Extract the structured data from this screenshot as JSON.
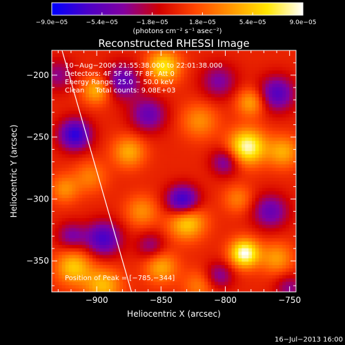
{
  "chart_data": {
    "type": "heatmap",
    "title": "Reconstructed RHESSI Image",
    "xlabel": "Heliocentric X (arcsec)",
    "ylabel": "Heliocentric Y (arcsec)",
    "xlim": [
      -935,
      -745
    ],
    "ylim": [
      -375,
      -180
    ],
    "xticks": [
      -900,
      -850,
      -800,
      -750
    ],
    "yticks": [
      -350,
      -300,
      -250,
      -200
    ],
    "xtick_labels": [
      "−900",
      "−850",
      "−800",
      "−750"
    ],
    "ytick_labels": [
      "−350",
      "−300",
      "−250",
      "−200"
    ],
    "colorbar": {
      "range": [
        -9e-05,
        9e-05
      ],
      "ticks": [
        -9e-05,
        -5.4e-05,
        -1.8e-05,
        1.8e-05,
        5.4e-05,
        9e-05
      ],
      "tick_labels": [
        "−9.0e−05",
        "−5.4e−05",
        "−1.8e−05",
        "1.8e−05",
        "5.4e−05",
        "9.0e−05"
      ],
      "unit_label": "(photons cm⁻² s⁻¹ asec⁻²)",
      "colormap": [
        "#0000ff",
        "#4b00c8",
        "#8200a0",
        "#d20000",
        "#ff4600",
        "#ff9600",
        "#ffe600",
        "#ffffff"
      ]
    },
    "annotations": [
      "10−Aug−2006 21:55:38.000 to 22:01:38.000",
      "Detectors: 4F 5F 6F 7F 8F, Att 0",
      "Energy Range: 25.0 − 50.0 keV",
      "Clean     Total counts: 9.08E+03"
    ],
    "peak_label": "Position of Peak = [−785,−344]",
    "peak": [
      -785,
      -344
    ],
    "limb_line": [
      [
        -927,
        -180
      ],
      [
        -873,
        -375
      ]
    ],
    "sources": [
      {
        "x": -785,
        "y": -344,
        "value": 9e-05,
        "width": 8
      },
      {
        "x": -783,
        "y": -258,
        "value": 8.5e-05,
        "width": 10
      },
      {
        "x": -780,
        "y": -222,
        "value": 4.5e-05,
        "width": 8
      },
      {
        "x": -820,
        "y": -237,
        "value": 3.5e-05,
        "width": 10
      },
      {
        "x": -848,
        "y": -193,
        "value": 6.5e-05,
        "width": 9
      },
      {
        "x": -900,
        "y": -212,
        "value": 5e-05,
        "width": 8
      },
      {
        "x": -830,
        "y": -318,
        "value": 6.5e-05,
        "width": 10
      },
      {
        "x": -875,
        "y": -262,
        "value": 4.5e-05,
        "width": 9
      },
      {
        "x": -918,
        "y": -355,
        "value": 5.5e-05,
        "width": 10
      },
      {
        "x": -895,
        "y": -370,
        "value": 5e-05,
        "width": 10
      },
      {
        "x": -850,
        "y": -355,
        "value": 4.5e-05,
        "width": 9
      },
      {
        "x": -755,
        "y": -262,
        "value": 4.5e-05,
        "width": 9
      },
      {
        "x": -760,
        "y": -348,
        "value": 4e-05,
        "width": 9
      },
      {
        "x": -865,
        "y": -310,
        "value": 3.5e-05,
        "width": 9
      },
      {
        "x": -905,
        "y": -282,
        "value": 3e-05,
        "width": 9
      },
      {
        "x": -790,
        "y": -300,
        "value": 3e-05,
        "width": 8
      },
      {
        "x": -925,
        "y": -292,
        "value": 3.5e-05,
        "width": 8
      },
      {
        "x": -820,
        "y": -370,
        "value": 3e-05,
        "width": 9
      },
      {
        "x": -917,
        "y": -248,
        "value": -7.5e-05,
        "width": 9
      },
      {
        "x": -833,
        "y": -302,
        "value": -8e-05,
        "width": 9
      },
      {
        "x": -895,
        "y": -332,
        "value": -6.5e-05,
        "width": 10
      },
      {
        "x": -880,
        "y": -205,
        "value": -5.5e-05,
        "width": 10
      },
      {
        "x": -760,
        "y": -215,
        "value": -6e-05,
        "width": 10
      },
      {
        "x": -860,
        "y": -232,
        "value": -5e-05,
        "width": 10
      },
      {
        "x": -800,
        "y": -270,
        "value": -4.5e-05,
        "width": 8
      },
      {
        "x": -765,
        "y": -310,
        "value": -5e-05,
        "width": 10
      },
      {
        "x": -805,
        "y": -205,
        "value": -4e-05,
        "width": 10
      },
      {
        "x": -920,
        "y": -330,
        "value": -4e-05,
        "width": 8
      },
      {
        "x": -858,
        "y": -338,
        "value": -3.5e-05,
        "width": 8
      },
      {
        "x": -805,
        "y": -362,
        "value": -4e-05,
        "width": 8
      },
      {
        "x": -750,
        "y": -372,
        "value": -3.5e-05,
        "width": 8
      },
      {
        "x": -930,
        "y": -200,
        "value": -3.5e-05,
        "width": 9
      }
    ]
  },
  "footer": {
    "timestamp": "16−Jul−2013 16:00"
  }
}
